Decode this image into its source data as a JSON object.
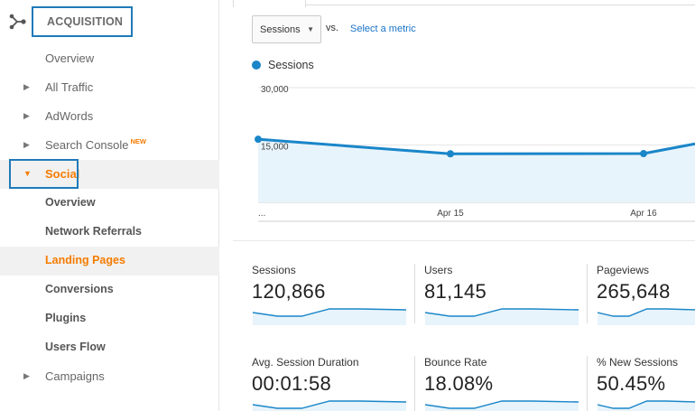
{
  "sidebar": {
    "section_title": "ACQUISITION",
    "items": [
      {
        "label": "Overview"
      },
      {
        "label": "All Traffic"
      },
      {
        "label": "AdWords"
      },
      {
        "label": "Search Console",
        "badge": "NEW"
      },
      {
        "label": "Social"
      },
      {
        "label": "Overview"
      },
      {
        "label": "Network Referrals"
      },
      {
        "label": "Landing Pages"
      },
      {
        "label": "Conversions"
      },
      {
        "label": "Plugins"
      },
      {
        "label": "Users Flow"
      },
      {
        "label": "Campaigns"
      }
    ]
  },
  "controls": {
    "metric_select": "Sessions",
    "vs_label": "vs.",
    "select_metric_link": "Select a metric"
  },
  "chart_data": {
    "type": "area",
    "series": [
      {
        "name": "Sessions",
        "values": [
          16500,
          12700,
          12750,
          15300
        ]
      }
    ],
    "x_labels": [
      "...",
      "Apr 15",
      "Apr 16"
    ],
    "y_ticks": [
      "30,000",
      "15,000"
    ],
    "ylim": [
      0,
      30000
    ],
    "color": "#1a86c9"
  },
  "scorecards": [
    {
      "label": "Sessions",
      "value": "120,866"
    },
    {
      "label": "Users",
      "value": "81,145"
    },
    {
      "label": "Pageviews",
      "value": "265,648"
    },
    {
      "label": "Avg. Session Duration",
      "value": "00:01:58"
    },
    {
      "label": "Bounce Rate",
      "value": "18.08%"
    },
    {
      "label": "% New Sessions",
      "value": "50.45%"
    }
  ],
  "colors": {
    "accent": "#1a86c9",
    "active_orange": "#f57c00",
    "highlight_box": "#1f7ab9",
    "link": "#1a73c8"
  }
}
